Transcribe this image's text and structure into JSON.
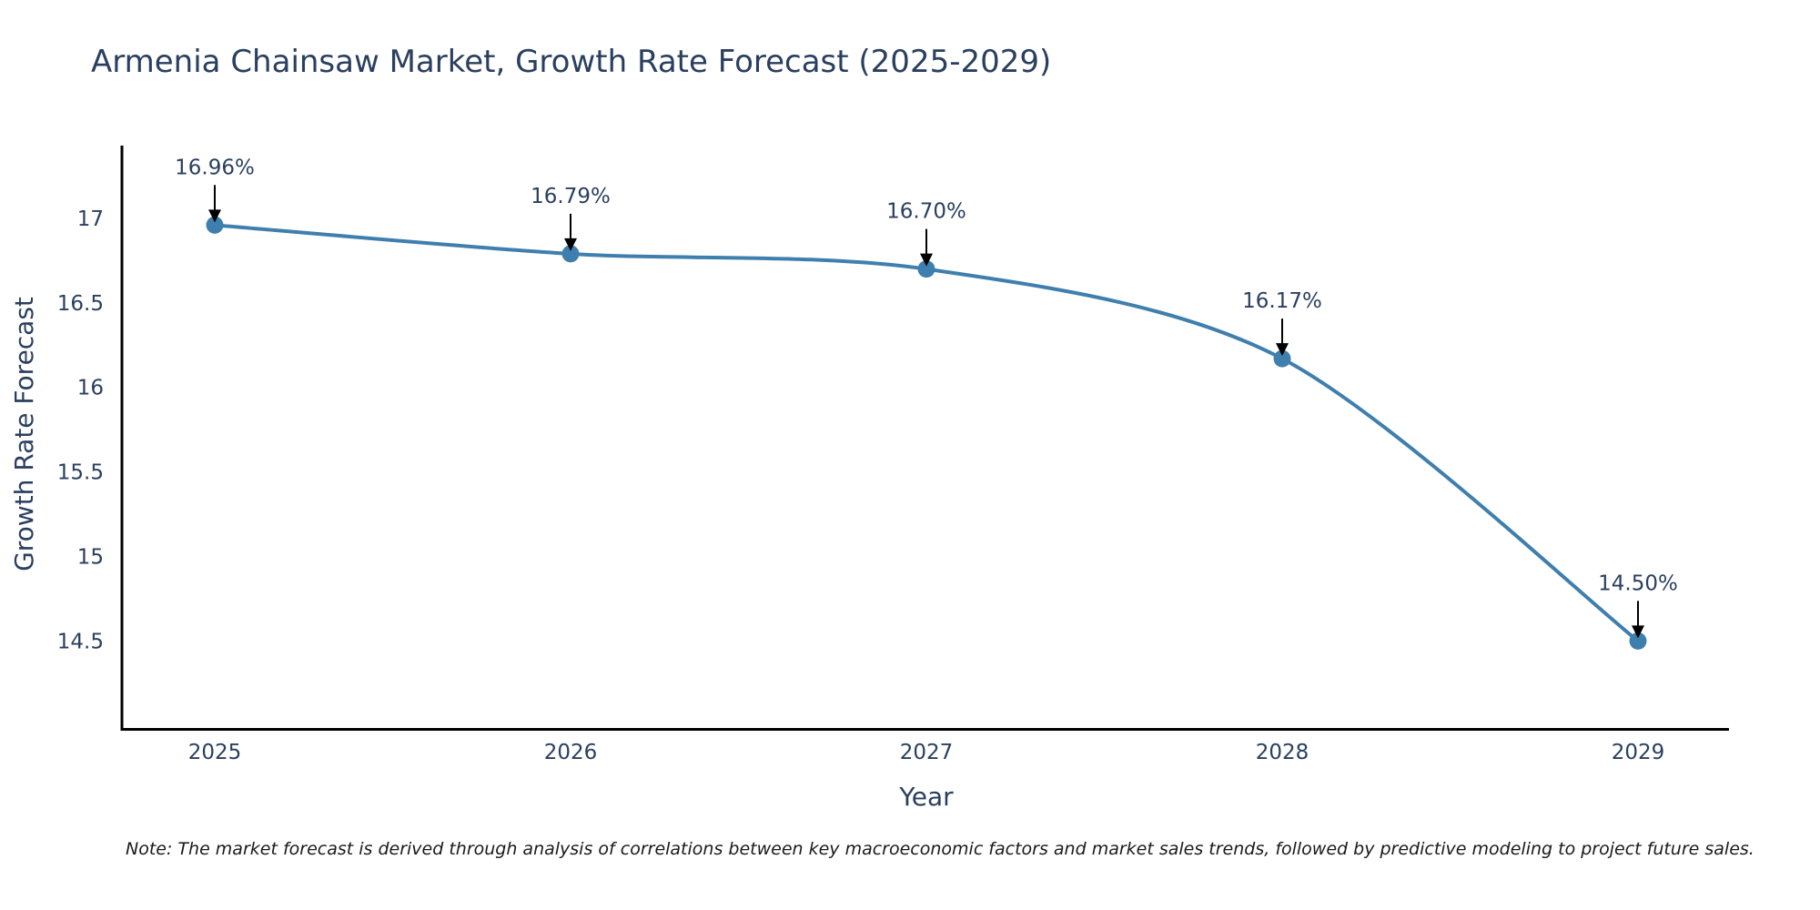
{
  "chart_data": {
    "type": "line",
    "title": "Armenia Chainsaw Market, Growth Rate Forecast (2025-2029)",
    "xlabel": "Year",
    "ylabel": "Growth Rate Forecast",
    "categories": [
      "2025",
      "2026",
      "2027",
      "2028",
      "2029"
    ],
    "values": [
      16.96,
      16.79,
      16.7,
      16.17,
      14.5
    ],
    "data_labels": [
      "16.96%",
      "16.79%",
      "16.70%",
      "16.17%",
      "14.50%"
    ],
    "y_ticks": [
      14.5,
      15,
      15.5,
      16,
      16.5,
      17
    ],
    "y_tick_labels": [
      "14.5",
      "15",
      "15.5",
      "16",
      "16.5",
      "17"
    ],
    "ylim": [
      13.98,
      17.43
    ],
    "grid": false,
    "line_color": "#3f7fae",
    "marker_color": "#3f7fae",
    "line_shape": "spline"
  },
  "footnote": "Note: The market forecast is derived through analysis of correlations between key macroeconomic factors and market sales trends, followed by predictive modeling to project future sales."
}
